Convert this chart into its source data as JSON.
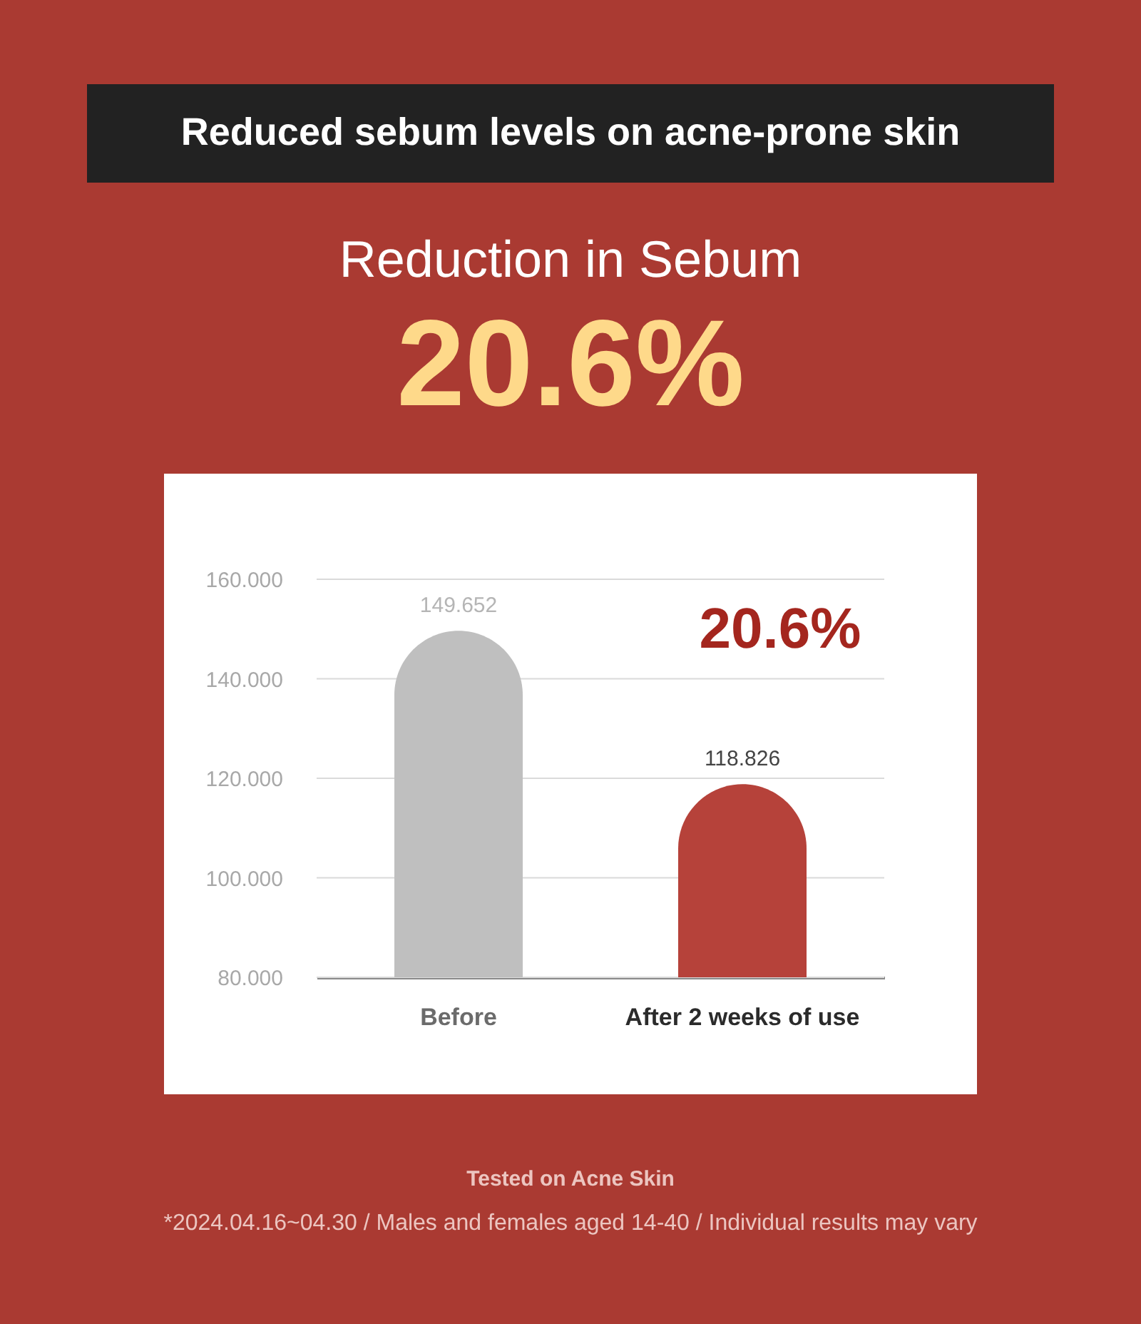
{
  "chart_data": {
    "type": "bar",
    "title": "Reduced sebum levels on acne-prone skin",
    "subtitle": "Reduction in Sebum",
    "categories": [
      "Before",
      "After 2 weeks of use"
    ],
    "values": [
      149.652,
      118.826
    ],
    "colors": [
      "#bfbfbf",
      "#b6423a"
    ],
    "ylim": [
      80,
      160
    ],
    "yticks": [
      {
        "value": 80,
        "label": "80.000"
      },
      {
        "value": 100,
        "label": "100.000"
      },
      {
        "value": 120,
        "label": "120.000"
      },
      {
        "value": 140,
        "label": "140.000"
      },
      {
        "value": 160,
        "label": "160.000"
      }
    ],
    "grid": "y",
    "data_labels": true,
    "annotations": [
      "20.6%",
      "20.6%",
      "Tested on Acne Skin",
      "*2024.04.16~04.30 / Males and females aged 14-40 / Individual results may vary"
    ]
  }
}
